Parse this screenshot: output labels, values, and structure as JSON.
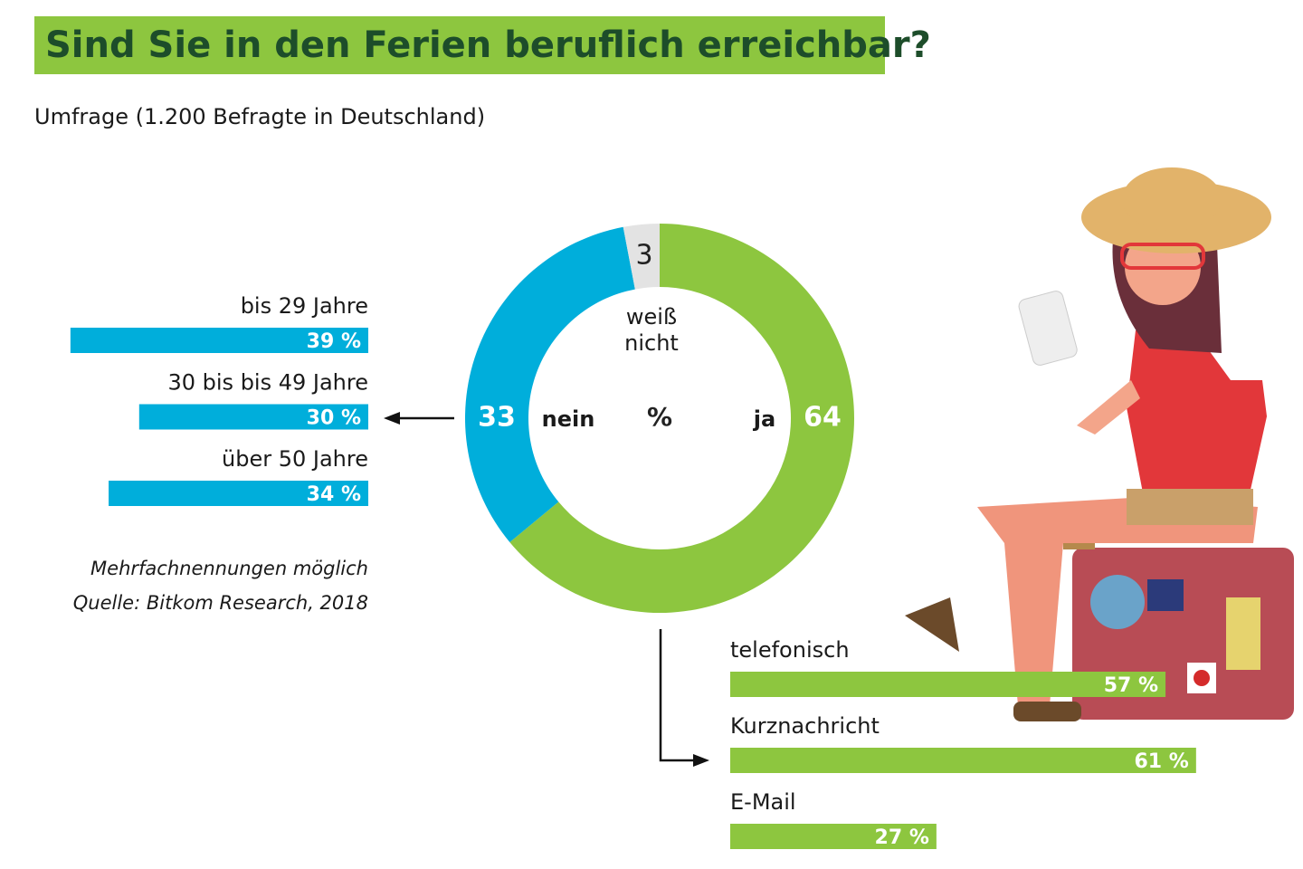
{
  "title": "Sind Sie in den Ferien beruflich erreichbar?",
  "subtitle": "Umfrage (1.200 Befragte in Deutschland)",
  "note": "Mehrfachnennungen möglich",
  "source": "Quelle: Bitkom Research, 2018",
  "chart_data": [
    {
      "type": "donut",
      "categories": [
        "ja",
        "nein",
        "weiß nicht"
      ],
      "values": [
        64,
        33,
        3
      ],
      "colors": [
        "#8dc63f",
        "#00aedb",
        "#e3e3e3"
      ],
      "center_label": "%"
    },
    {
      "type": "bar",
      "direction": "left",
      "categories": [
        "bis 29 Jahre",
        "30 bis bis 49 Jahre",
        "über 50 Jahre"
      ],
      "values": [
        39,
        30,
        34
      ],
      "value_labels": [
        "39 %",
        "30 %",
        "34 %"
      ],
      "color": "#00aedb"
    },
    {
      "type": "bar",
      "direction": "right",
      "categories": [
        "telefonisch",
        "Kurznachricht",
        "E-Mail"
      ],
      "values": [
        57,
        61,
        27
      ],
      "value_labels": [
        "57 %",
        "61 %",
        "27 %"
      ],
      "color": "#8dc63f"
    }
  ]
}
